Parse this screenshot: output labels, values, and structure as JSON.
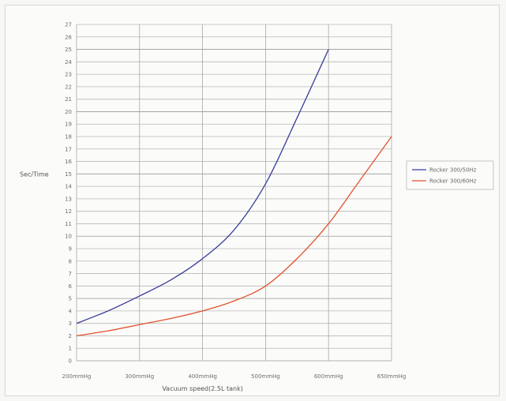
{
  "chart_data": {
    "type": "line",
    "title": "",
    "xlabel": "Vacuum speed(2.5L tank)",
    "ylabel": "Sec/Time",
    "categories": [
      "200mmHg",
      "300mmHg",
      "400mmHg",
      "500mmHg",
      "600mmHg",
      "650mmHg"
    ],
    "ylim": [
      0,
      27
    ],
    "yticks": [
      0,
      1,
      2,
      3,
      4,
      5,
      6,
      7,
      8,
      9,
      10,
      11,
      12,
      13,
      14,
      15,
      16,
      17,
      18,
      19,
      20,
      21,
      22,
      23,
      24,
      25,
      26,
      27
    ],
    "grid": true,
    "legend_position": "right",
    "series": [
      {
        "name": "Rocker 300/50Hz",
        "color": "#3b3f9a",
        "points": [
          [
            200,
            3
          ],
          [
            250,
            4
          ],
          [
            300,
            5.2
          ],
          [
            350,
            6.5
          ],
          [
            400,
            8.2
          ],
          [
            450,
            10.5
          ],
          [
            500,
            14.2
          ],
          [
            550,
            19.5
          ],
          [
            600,
            25
          ]
        ]
      },
      {
        "name": "Rocker 300/60Hz",
        "color": "#e0532b",
        "points": [
          [
            200,
            2
          ],
          [
            250,
            2.4
          ],
          [
            300,
            2.9
          ],
          [
            350,
            3.4
          ],
          [
            400,
            4
          ],
          [
            450,
            4.8
          ],
          [
            500,
            6
          ],
          [
            550,
            8.2
          ],
          [
            600,
            11
          ],
          [
            650,
            14.5
          ],
          [
            700,
            18
          ]
        ]
      }
    ]
  }
}
